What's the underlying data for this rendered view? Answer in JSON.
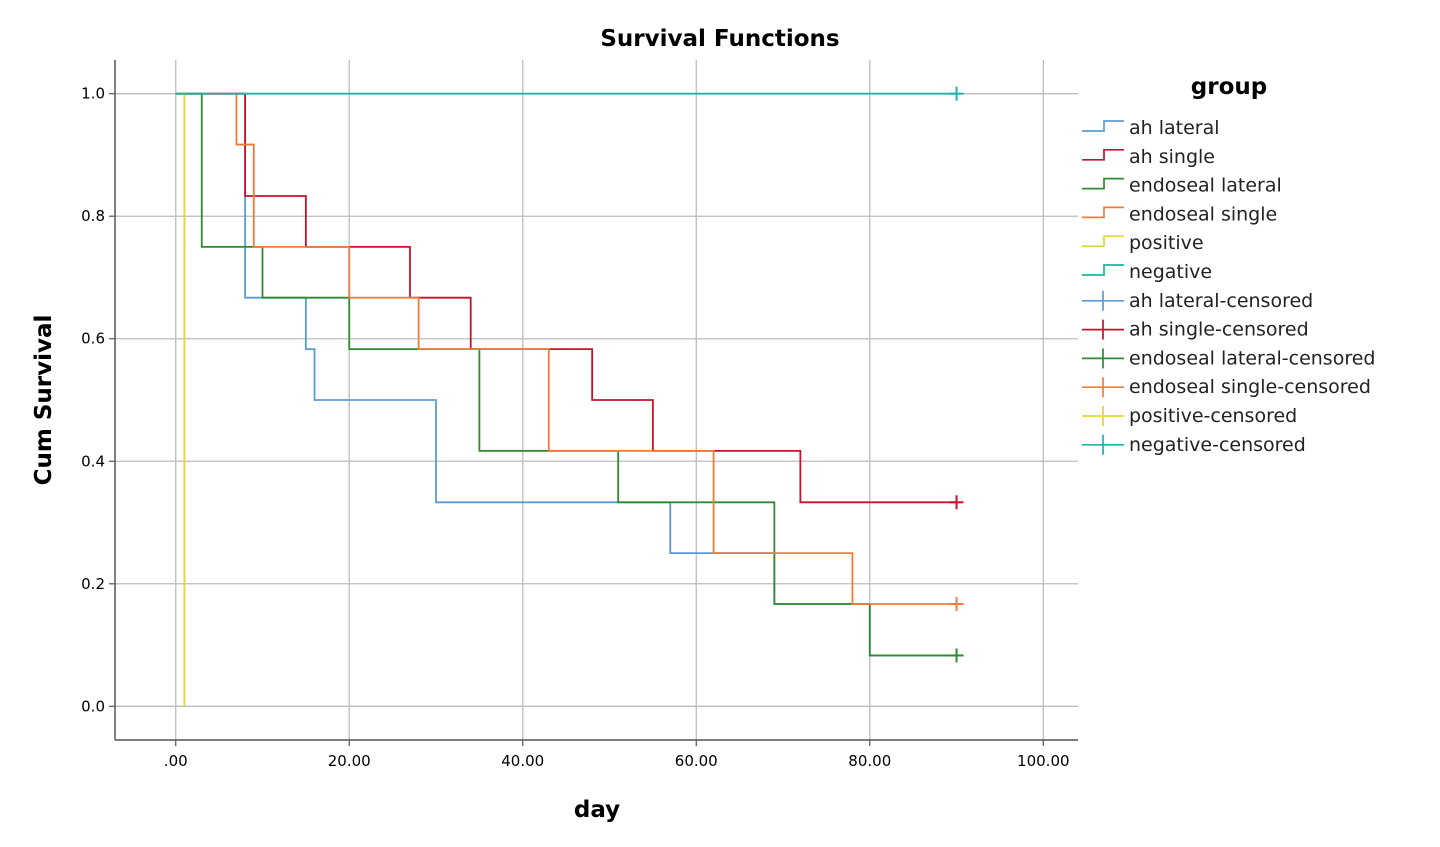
{
  "chart_data": {
    "type": "line",
    "title": "Survival Functions",
    "xlabel": "day",
    "ylabel": "Cum Survival",
    "xlim": [
      -7,
      104
    ],
    "ylim": [
      -0.055,
      1.055
    ],
    "x_ticks": [
      0,
      20,
      40,
      60,
      80,
      100
    ],
    "x_tick_labels": [
      ".00",
      "20.00",
      "40.00",
      "60.00",
      "80.00",
      "100.00"
    ],
    "y_ticks": [
      0.0,
      0.2,
      0.4,
      0.6,
      0.8,
      1.0
    ],
    "y_tick_labels": [
      "0.0",
      "0.2",
      "0.4",
      "0.6",
      "0.8",
      "1.0"
    ],
    "grid": true,
    "legend": {
      "title": "group",
      "position": "right"
    },
    "series": [
      {
        "name": "ah lateral",
        "color": "#5b9bd5",
        "steps": [
          [
            0,
            1.0
          ],
          [
            8,
            0.667
          ],
          [
            15,
            0.583
          ],
          [
            16,
            0.5
          ],
          [
            30,
            0.333
          ],
          [
            57,
            0.25
          ],
          [
            69,
            0.167
          ],
          [
            80,
            0.083
          ],
          [
            90,
            0.083
          ]
        ],
        "censored": []
      },
      {
        "name": "ah single",
        "color": "#c8102e",
        "steps": [
          [
            0,
            1.0
          ],
          [
            8,
            0.833
          ],
          [
            15,
            0.75
          ],
          [
            27,
            0.667
          ],
          [
            34,
            0.583
          ],
          [
            48,
            0.5
          ],
          [
            55,
            0.417
          ],
          [
            72,
            0.333
          ],
          [
            90,
            0.333
          ]
        ],
        "censored": [
          [
            90,
            0.333
          ]
        ]
      },
      {
        "name": "endoseal lateral",
        "color": "#2e8b2e",
        "steps": [
          [
            0,
            1.0
          ],
          [
            3,
            0.75
          ],
          [
            10,
            0.667
          ],
          [
            20,
            0.583
          ],
          [
            35,
            0.417
          ],
          [
            51,
            0.333
          ],
          [
            69,
            0.167
          ],
          [
            80,
            0.083
          ],
          [
            90,
            0.083
          ]
        ],
        "censored": [
          [
            90,
            0.083
          ]
        ]
      },
      {
        "name": "endoseal single",
        "color": "#f07c3c",
        "steps": [
          [
            0,
            1.0
          ],
          [
            7,
            0.917
          ],
          [
            9,
            0.75
          ],
          [
            20,
            0.667
          ],
          [
            28,
            0.583
          ],
          [
            43,
            0.417
          ],
          [
            62,
            0.25
          ],
          [
            78,
            0.167
          ],
          [
            90,
            0.167
          ]
        ],
        "censored": [
          [
            90,
            0.167
          ]
        ]
      },
      {
        "name": "positive",
        "color": "#e4d733",
        "steps": [
          [
            0,
            1.0
          ],
          [
            1,
            0.0
          ]
        ],
        "censored": []
      },
      {
        "name": "negative",
        "color": "#1fb3a8",
        "steps": [
          [
            0,
            1.0
          ],
          [
            90,
            1.0
          ]
        ],
        "censored": [
          [
            90,
            1.0
          ]
        ]
      }
    ],
    "censored_legend": [
      {
        "name": "ah lateral-censored",
        "color": "#5b9bd5"
      },
      {
        "name": "ah single-censored",
        "color": "#c8102e"
      },
      {
        "name": "endoseal lateral-censored",
        "color": "#2e8b2e"
      },
      {
        "name": "endoseal single-censored",
        "color": "#f07c3c"
      },
      {
        "name": "positive-censored",
        "color": "#e4d733"
      },
      {
        "name": "negative-censored",
        "color": "#1fb3a8"
      }
    ]
  }
}
